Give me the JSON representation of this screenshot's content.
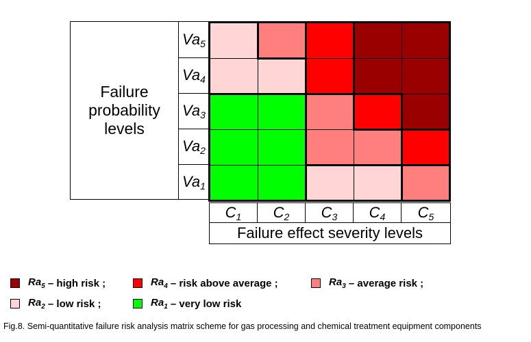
{
  "y_axis": {
    "label": "Failure\nprobability\nlevels",
    "levels": [
      {
        "base": "Va",
        "sub": "5"
      },
      {
        "base": "Va",
        "sub": "4"
      },
      {
        "base": "Va",
        "sub": "3"
      },
      {
        "base": "Va",
        "sub": "2"
      },
      {
        "base": "Va",
        "sub": "1"
      }
    ]
  },
  "x_axis": {
    "label": "Failure effect severity levels",
    "levels": [
      {
        "base": "C",
        "sub": "1"
      },
      {
        "base": "C",
        "sub": "2"
      },
      {
        "base": "C",
        "sub": "3"
      },
      {
        "base": "C",
        "sub": "4"
      },
      {
        "base": "C",
        "sub": "5"
      }
    ]
  },
  "colors": {
    "Ra1": "#00ff00",
    "Ra2": "#ffd5d5",
    "Ra3": "#ff7f7f",
    "Ra4": "#ff0000",
    "Ra5": "#9a0000"
  },
  "matrix": [
    [
      "Ra2",
      "Ra3",
      "Ra4",
      "Ra5",
      "Ra5"
    ],
    [
      "Ra2",
      "Ra2",
      "Ra4",
      "Ra5",
      "Ra5"
    ],
    [
      "Ra1",
      "Ra1",
      "Ra3",
      "Ra4",
      "Ra5"
    ],
    [
      "Ra1",
      "Ra1",
      "Ra3",
      "Ra3",
      "Ra4"
    ],
    [
      "Ra1",
      "Ra1",
      "Ra2",
      "Ra2",
      "Ra3"
    ]
  ],
  "legend": [
    {
      "base": "Ra",
      "sub": "5",
      "text": "– high risk ;",
      "key": "Ra5"
    },
    {
      "base": "Ra",
      "sub": "4",
      "text": "– risk above average ;",
      "key": "Ra4"
    },
    {
      "base": "Ra",
      "sub": "3",
      "text": "– average risk ;",
      "key": "Ra3"
    },
    {
      "base": "Ra",
      "sub": "2",
      "text": "– low risk ;",
      "key": "Ra2"
    },
    {
      "base": "Ra",
      "sub": "1",
      "text": "– very low risk",
      "key": "Ra1"
    }
  ],
  "caption": "Fig.8. Semi-quantitative failure risk analysis matrix scheme for gas processing and chemical treatment equipment components"
}
